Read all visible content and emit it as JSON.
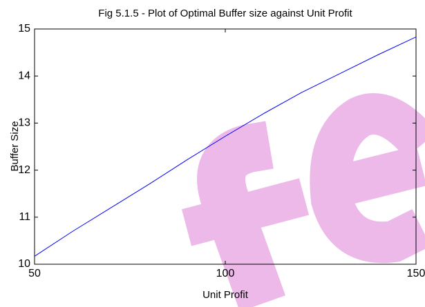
{
  "chart_data": {
    "type": "line",
    "title": "Fig 5.1.5 - Plot of Optimal Buffer size against Unit Profit",
    "x_label": "Unit Profit",
    "y_label": "Buffer Size",
    "x": [
      50,
      60,
      70,
      80,
      90,
      100,
      110,
      120,
      130,
      140,
      150
    ],
    "series": [
      {
        "name": "Buffer Size",
        "color": "#0000ff",
        "values": [
          10.17,
          10.7,
          11.2,
          11.7,
          12.22,
          12.72,
          13.2,
          13.65,
          14.05,
          14.45,
          14.83
        ]
      }
    ],
    "xlim": [
      50,
      150
    ],
    "xticks": [
      50,
      100,
      150
    ],
    "ylim": [
      10,
      15
    ],
    "yticks": [
      10,
      11,
      12,
      13,
      14,
      15
    ],
    "grid": false
  }
}
